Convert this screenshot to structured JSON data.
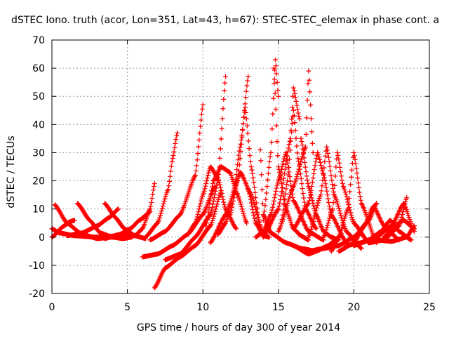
{
  "chart_data": {
    "type": "scatter",
    "title": "dSTEC Iono. truth (acor, Lon=351, Lat=43, h=67): STEC-STEC_elemax in phase cont. a",
    "xlabel": "GPS time / hours of day 300 of year 2014",
    "ylabel": "dSTEC  / TECUs",
    "xlim": [
      0,
      25
    ],
    "ylim": [
      -20,
      70
    ],
    "x_ticks": [
      0,
      5,
      10,
      15,
      20,
      25
    ],
    "y_ticks": [
      -20,
      -10,
      0,
      10,
      20,
      30,
      40,
      50,
      60,
      70
    ],
    "grid": true,
    "marker": "+",
    "color": "#ff0000",
    "series": [
      {
        "x": [
          0.0,
          0.5,
          1.5,
          3.0,
          4.5,
          5.2
        ],
        "y": [
          3,
          1.5,
          0.5,
          0,
          0.5,
          1
        ]
      },
      {
        "x": [
          0.2,
          1.0,
          2.0,
          3.0,
          4.0,
          4.8
        ],
        "y": [
          11.5,
          5,
          1,
          -0.5,
          0,
          1
        ]
      },
      {
        "x": [
          0.0,
          0.8,
          1.2,
          1.5
        ],
        "y": [
          0,
          4,
          5.5,
          6
        ]
      },
      {
        "x": [
          1.7,
          2.5,
          3.2,
          4.0,
          4.7,
          5.3
        ],
        "y": [
          12,
          6,
          1.5,
          0,
          -0.5,
          0
        ]
      },
      {
        "x": [
          1.0,
          2.0,
          3.0,
          3.8,
          4.4
        ],
        "y": [
          0.5,
          1.5,
          4,
          7,
          10
        ]
      },
      {
        "x": [
          3.5,
          4.2,
          4.8,
          5.5,
          6.2
        ],
        "y": [
          12,
          7,
          3,
          0.5,
          -0.5
        ]
      },
      {
        "x": [
          3.5,
          4.5,
          5.2,
          5.8,
          6.5
        ],
        "y": [
          -0.5,
          1,
          3,
          6,
          9
        ]
      },
      {
        "x": [
          4.5,
          5.5,
          6.0,
          6.5,
          6.8
        ],
        "y": [
          0,
          0.5,
          3,
          10,
          19
        ]
      },
      {
        "x": [
          6.2,
          7.0,
          7.7,
          8.0,
          8.3
        ],
        "y": [
          0,
          5,
          17,
          28,
          37
        ]
      },
      {
        "x": [
          6.5,
          7.5,
          8.5,
          9.5,
          10.0
        ],
        "y": [
          -1,
          2,
          8,
          22,
          47
        ]
      },
      {
        "x": [
          6.0,
          7.0,
          8.0,
          9.0,
          10.0,
          10.8
        ],
        "y": [
          -7,
          -6,
          -3,
          1,
          8,
          18
        ]
      },
      {
        "x": [
          6.8,
          7.5,
          8.5,
          9.5,
          10.5,
          11.2
        ],
        "y": [
          -18,
          -11,
          -7,
          -3,
          4,
          16
        ]
      },
      {
        "x": [
          7.5,
          8.5,
          9.5,
          10.5,
          11.0,
          11.5
        ],
        "y": [
          -8,
          -6,
          0,
          8,
          20,
          57
        ]
      },
      {
        "x": [
          9.0,
          9.5,
          10.0,
          10.5,
          11.0,
          11.5,
          12.2
        ],
        "y": [
          1,
          5,
          15,
          25,
          21,
          10,
          3
        ]
      },
      {
        "x": [
          10.2,
          10.7,
          11.2,
          11.8,
          12.3,
          12.9
        ],
        "y": [
          4,
          20,
          25,
          23,
          15,
          5
        ]
      },
      {
        "x": [
          11.0,
          11.5,
          12.0,
          12.5,
          13.0
        ],
        "y": [
          1,
          5,
          15,
          33,
          57
        ]
      },
      {
        "x": [
          11.8,
          12.3,
          12.8,
          13.2,
          13.8
        ],
        "y": [
          8,
          20,
          46,
          25,
          3
        ]
      },
      {
        "x": [
          10.5,
          11.5,
          12.5,
          13.2,
          14.0
        ],
        "y": [
          -2,
          8,
          23,
          15,
          1
        ]
      },
      {
        "x": [
          13.0,
          13.5,
          14.0,
          14.4
        ],
        "y": [
          17,
          5,
          0.5,
          0
        ]
      },
      {
        "x": [
          13.5,
          14.0,
          14.5,
          15.0,
          15.5,
          16.0,
          17.0,
          18.0
        ],
        "y": [
          0,
          2,
          8,
          20,
          30,
          13,
          2,
          -1
        ]
      },
      {
        "x": [
          14.0,
          14.5,
          14.8,
          15.0
        ],
        "y": [
          6,
          30,
          63,
          50
        ]
      },
      {
        "x": [
          14.7,
          15.0,
          15.5,
          16.0,
          16.5,
          17.0
        ],
        "y": [
          60,
          25,
          10,
          3,
          0.5,
          -1
        ]
      },
      {
        "x": [
          13.8,
          14.0,
          14.5,
          15.5,
          16.5,
          17.5
        ],
        "y": [
          31,
          8,
          1.5,
          -2,
          -4,
          -5
        ]
      },
      {
        "x": [
          14.0,
          15.0,
          15.8,
          16.0,
          16.4
        ],
        "y": [
          0,
          10,
          35,
          53,
          42
        ]
      },
      {
        "x": [
          15.2,
          15.6,
          16.0,
          16.3,
          16.8,
          17.5
        ],
        "y": [
          5,
          20,
          45,
          28,
          10,
          3
        ]
      },
      {
        "x": [
          15.0,
          16.0,
          16.8,
          17.0,
          17.3
        ],
        "y": [
          2,
          18,
          32,
          59,
          30
        ]
      },
      {
        "x": [
          16.5,
          17.0,
          17.5,
          18.0,
          18.5,
          19.0
        ],
        "y": [
          35,
          18,
          8,
          2,
          0,
          -1
        ]
      },
      {
        "x": [
          16.0,
          17.0,
          17.6,
          18.0,
          18.5,
          19.5
        ],
        "y": [
          3,
          12,
          30,
          22,
          8,
          -2
        ]
      },
      {
        "x": [
          17.0,
          17.8,
          18.2,
          18.7,
          19.5,
          20.5
        ],
        "y": [
          0,
          15,
          32,
          15,
          2,
          -4
        ]
      },
      {
        "x": [
          16.0,
          17.0,
          17.5,
          18.3,
          19.0
        ],
        "y": [
          -3,
          -6,
          -5,
          -3,
          0
        ]
      },
      {
        "x": [
          18.0,
          18.6,
          18.9,
          19.3,
          20.0,
          21.0
        ],
        "y": [
          0,
          10,
          30,
          18,
          5,
          -2
        ]
      },
      {
        "x": [
          18.5,
          19.0,
          19.6,
          20.0,
          20.5,
          21.5
        ],
        "y": [
          -5,
          0,
          10,
          30,
          12,
          -2
        ]
      },
      {
        "x": [
          17.0,
          18.0,
          19.0,
          20.0,
          21.0,
          21.5
        ],
        "y": [
          -5,
          -4,
          -3,
          0,
          6,
          12
        ]
      },
      {
        "x": [
          19.0,
          20.0,
          20.7,
          21.3,
          22.0,
          23.0
        ],
        "y": [
          -5,
          -2,
          4,
          11,
          4,
          -1
        ]
      },
      {
        "x": [
          20.0,
          21.0,
          21.8,
          22.4,
          23.0,
          23.8
        ],
        "y": [
          -3,
          -1,
          2,
          6,
          2,
          -1
        ]
      },
      {
        "x": [
          19.5,
          20.5,
          21.5,
          22.5,
          23.3,
          24.0
        ],
        "y": [
          -3,
          -2,
          0,
          4,
          12,
          2
        ]
      },
      {
        "x": [
          21.0,
          22.0,
          23.0,
          23.5
        ],
        "y": [
          -2,
          -1,
          4,
          14
        ]
      },
      {
        "x": [
          22.0,
          22.7,
          23.3,
          24.0
        ],
        "y": [
          0,
          4,
          6,
          3
        ]
      },
      {
        "x": [
          21.5,
          22.5,
          23.5,
          24.0
        ],
        "y": [
          -1,
          -1.5,
          0,
          4
        ]
      }
    ]
  }
}
